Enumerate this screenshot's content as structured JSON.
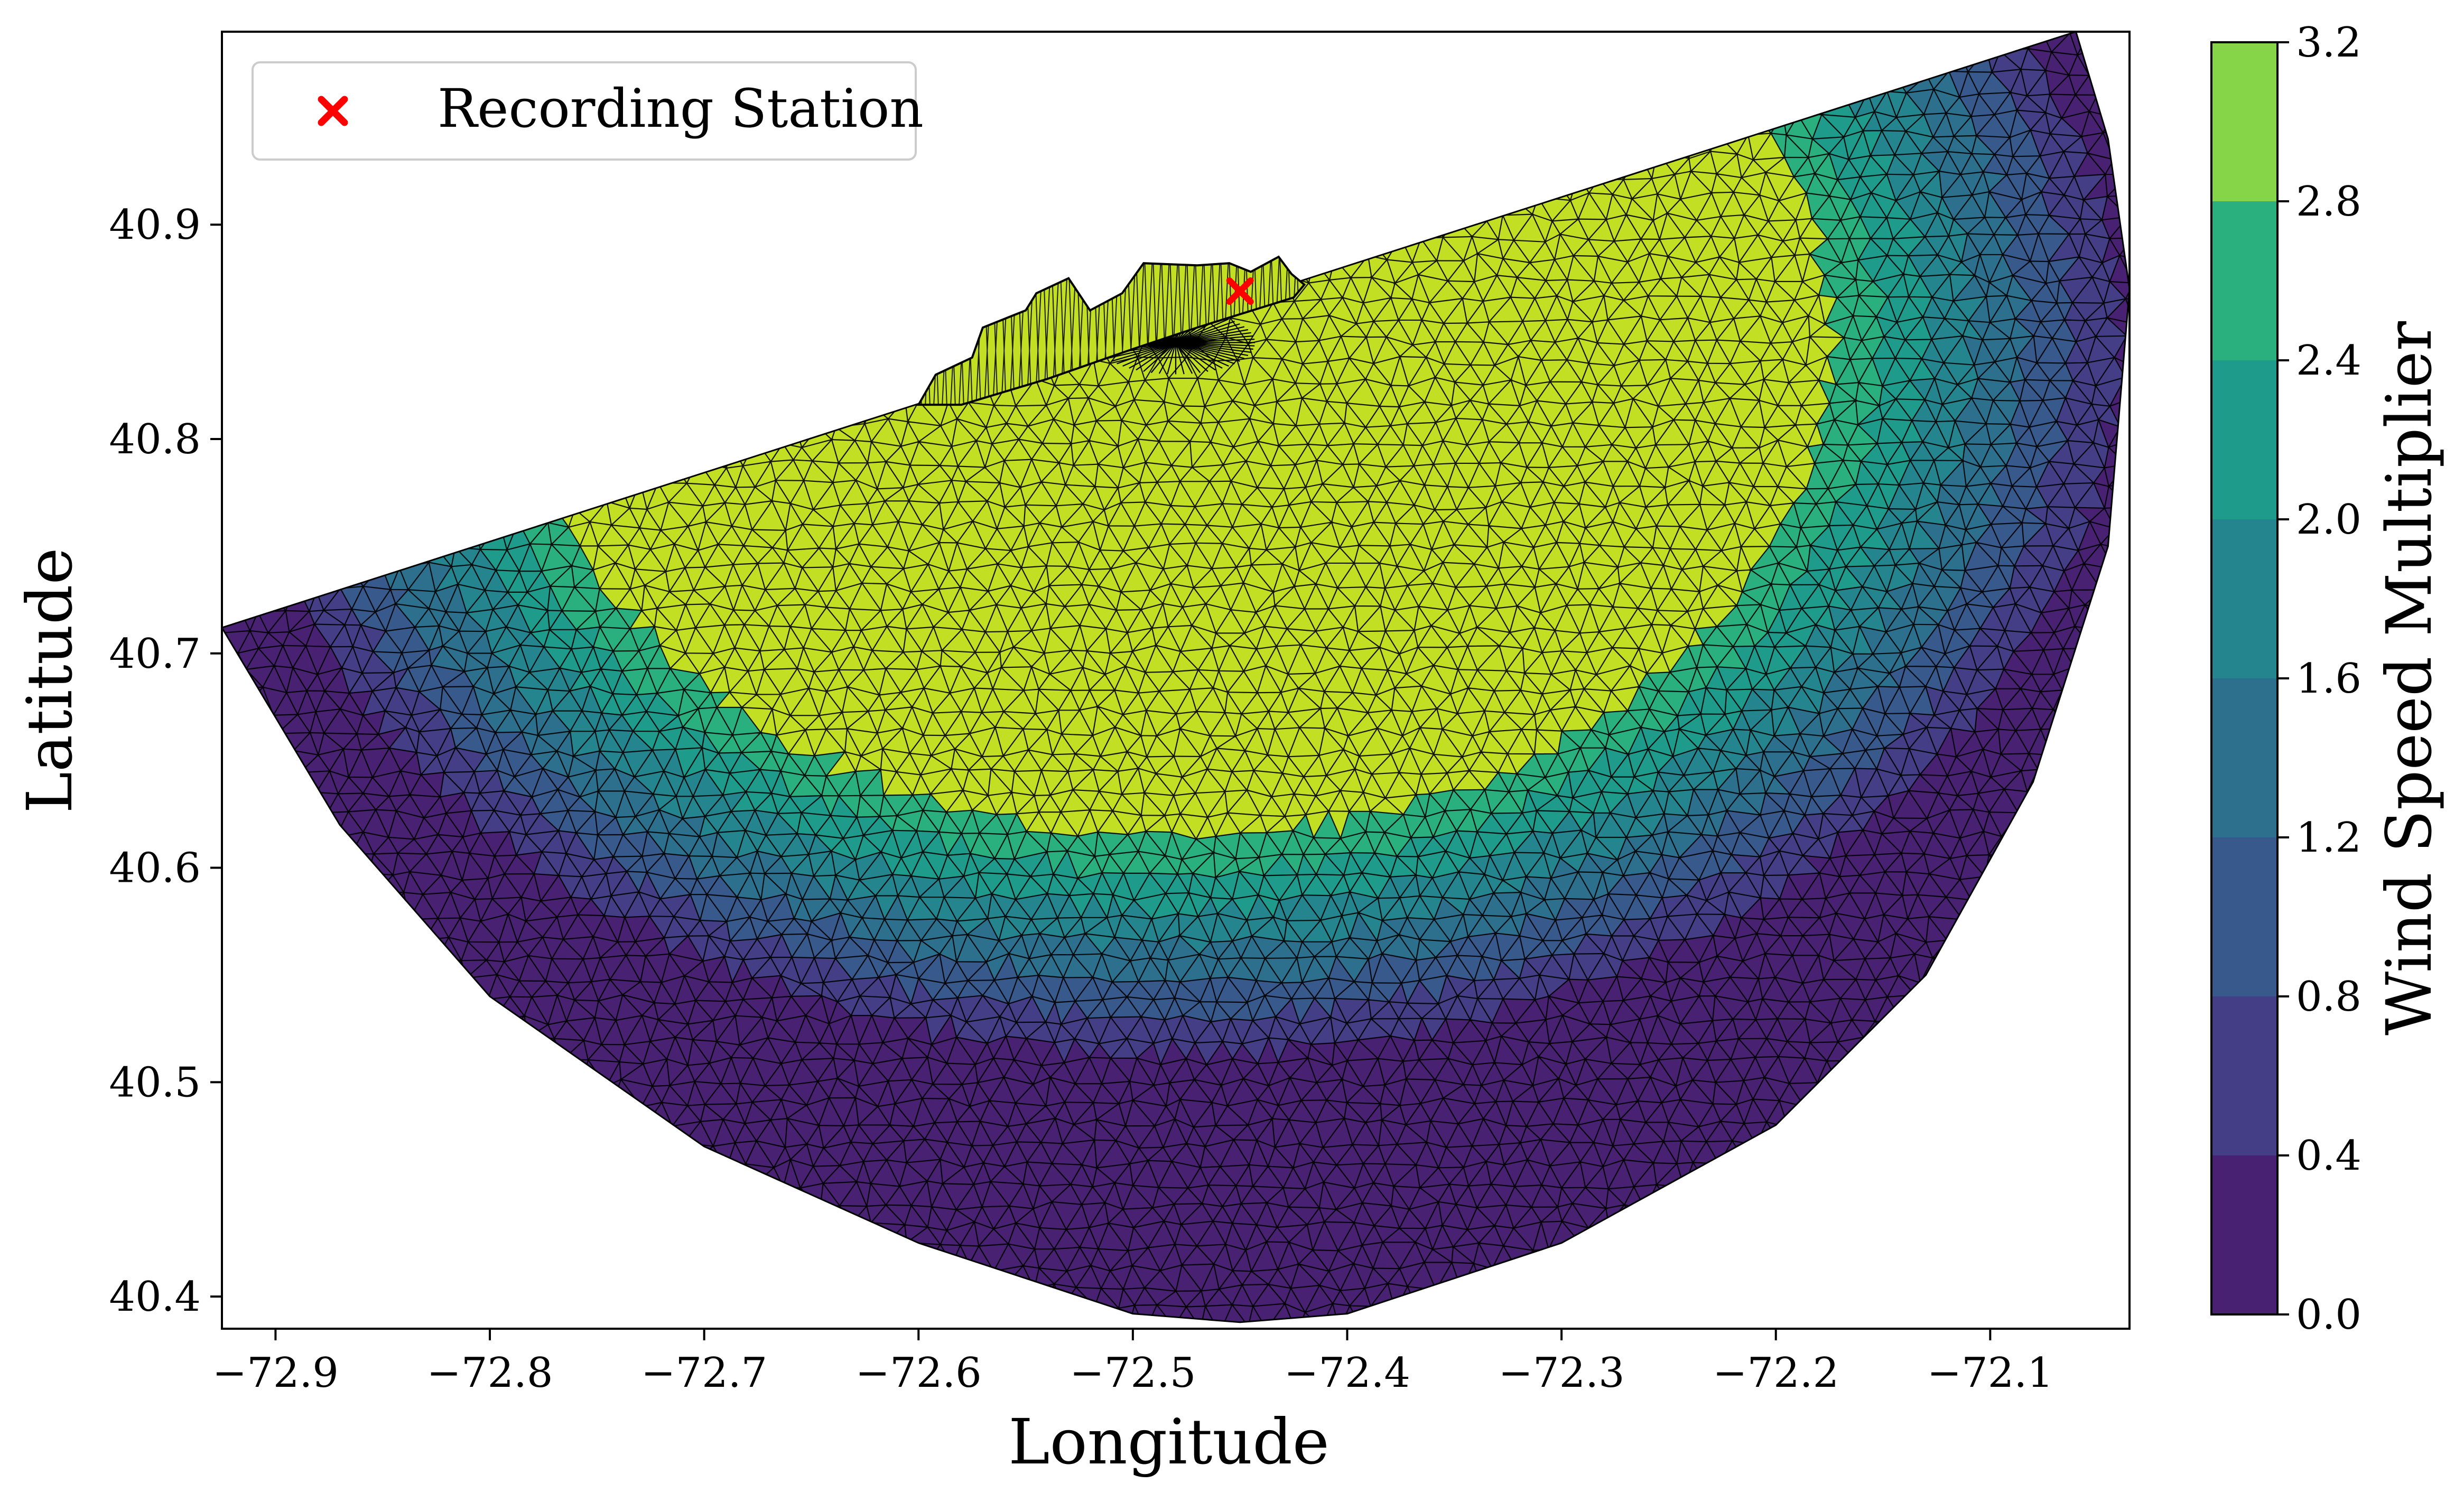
{
  "chart_data": {
    "type": "heatmap",
    "subtype": "triangular-mesh contour map",
    "xlabel": "Longitude",
    "ylabel": "Latitude",
    "xlim": [
      -72.925,
      -72.035
    ],
    "ylim": [
      40.385,
      40.99
    ],
    "xticks": [
      -72.9,
      -72.8,
      -72.7,
      -72.6,
      -72.5,
      -72.4,
      -72.3,
      -72.2,
      -72.1
    ],
    "xtick_labels": [
      "−72.9",
      "−72.8",
      "−72.7",
      "−72.6",
      "−72.5",
      "−72.4",
      "−72.3",
      "−72.2",
      "−72.1"
    ],
    "yticks": [
      40.4,
      40.5,
      40.6,
      40.7,
      40.8,
      40.9
    ],
    "ytick_labels": [
      "40.4",
      "40.5",
      "40.6",
      "40.7",
      "40.8",
      "40.9"
    ],
    "colorbar": {
      "label": "Wind Speed Multiplier",
      "levels": [
        0.0,
        0.4,
        0.8,
        1.2,
        1.6,
        2.0,
        2.4,
        2.8,
        3.2
      ],
      "tick_labels": [
        "0.0",
        "0.4",
        "0.8",
        "1.2",
        "1.6",
        "2.0",
        "2.4",
        "2.8",
        "3.2"
      ],
      "colors": [
        "#482173",
        "#433e85",
        "#38598c",
        "#2d708e",
        "#25858e",
        "#1e9b8a",
        "#2ab07f",
        "#52c569",
        "#86d549",
        "#c2df23"
      ]
    },
    "field": {
      "description": "storm wind-speed multiplier on an unstructured coastal mesh",
      "center": [
        -72.48,
        40.845
      ],
      "max_value": 3.2,
      "plateau_radius_deg": 0.22,
      "falloff_width_deg": 0.13
    },
    "domain": {
      "shoreline_west": [
        -72.925,
        40.712
      ],
      "shoreline_east": [
        -72.06,
        40.99
      ],
      "outer_boundary": [
        [
          -72.925,
          40.712
        ],
        [
          -72.87,
          40.62
        ],
        [
          -72.8,
          40.54
        ],
        [
          -72.7,
          40.47
        ],
        [
          -72.6,
          40.425
        ],
        [
          -72.5,
          40.392
        ],
        [
          -72.45,
          40.388
        ],
        [
          -72.4,
          40.392
        ],
        [
          -72.3,
          40.425
        ],
        [
          -72.2,
          40.48
        ],
        [
          -72.13,
          40.55
        ],
        [
          -72.08,
          40.64
        ],
        [
          -72.045,
          40.75
        ],
        [
          -72.035,
          40.87
        ],
        [
          -72.045,
          40.94
        ],
        [
          -72.06,
          40.99
        ]
      ]
    },
    "inlet": {
      "outline": [
        [
          -72.6,
          40.816
        ],
        [
          -72.592,
          40.83
        ],
        [
          -72.575,
          40.838
        ],
        [
          -72.57,
          40.852
        ],
        [
          -72.55,
          40.86
        ],
        [
          -72.545,
          40.868
        ],
        [
          -72.53,
          40.875
        ],
        [
          -72.52,
          40.86
        ],
        [
          -72.505,
          40.868
        ],
        [
          -72.495,
          40.882
        ],
        [
          -72.47,
          40.881
        ],
        [
          -72.455,
          40.882
        ],
        [
          -72.445,
          40.878
        ],
        [
          -72.432,
          40.885
        ],
        [
          -72.426,
          40.877
        ],
        [
          -72.42,
          40.872
        ],
        [
          -72.425,
          40.866
        ],
        [
          -72.47,
          40.852
        ],
        [
          -72.5,
          40.842
        ],
        [
          -72.54,
          40.828
        ],
        [
          -72.58,
          40.816
        ]
      ],
      "value_level": 3.0
    },
    "series": [
      {
        "name": "Recording Station",
        "type": "scatter",
        "marker": "x",
        "color": "#ff0000",
        "points": [
          [
            -72.45,
            40.869
          ]
        ]
      }
    ],
    "legend_location": "top-left",
    "grid": false
  }
}
